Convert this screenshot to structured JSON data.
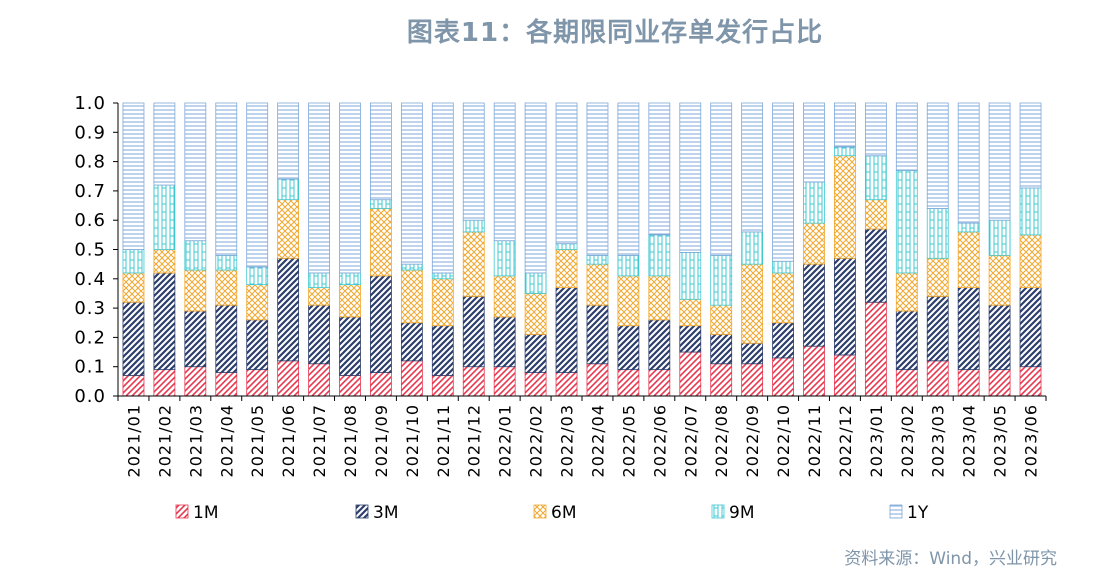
{
  "title": "图表11：各期限同业存单发行占比",
  "source": "资料来源：Wind，兴业研究",
  "chart_data": {
    "type": "bar",
    "stacked": true,
    "ylim": [
      0,
      1
    ],
    "yticks": [
      "0.0",
      "0.1",
      "0.2",
      "0.3",
      "0.4",
      "0.5",
      "0.6",
      "0.7",
      "0.8",
      "0.9",
      "1.0"
    ],
    "legend_position": "bottom",
    "grid": false,
    "categories": [
      "2021/01",
      "2021/02",
      "2021/03",
      "2021/04",
      "2021/05",
      "2021/06",
      "2021/07",
      "2021/08",
      "2021/09",
      "2021/10",
      "2021/11",
      "2021/12",
      "2022/01",
      "2022/02",
      "2022/03",
      "2022/04",
      "2022/05",
      "2022/06",
      "2022/07",
      "2022/08",
      "2022/09",
      "2022/10",
      "2022/11",
      "2022/12",
      "2023/01",
      "2023/02",
      "2023/03",
      "2023/04",
      "2023/05",
      "2023/06"
    ],
    "series": [
      {
        "name": "1M",
        "color": "#e8384f",
        "pattern": "diag-right",
        "values": [
          0.07,
          0.09,
          0.1,
          0.08,
          0.09,
          0.12,
          0.11,
          0.07,
          0.08,
          0.12,
          0.07,
          0.1,
          0.1,
          0.08,
          0.08,
          0.11,
          0.09,
          0.09,
          0.15,
          0.11,
          0.11,
          0.13,
          0.17,
          0.14,
          0.32,
          0.09,
          0.12,
          0.09,
          0.09,
          0.1
        ]
      },
      {
        "name": "3M",
        "color": "#2c3e6b",
        "pattern": "diag-thick",
        "values": [
          0.25,
          0.33,
          0.19,
          0.23,
          0.17,
          0.35,
          0.2,
          0.2,
          0.33,
          0.13,
          0.17,
          0.24,
          0.17,
          0.13,
          0.29,
          0.2,
          0.15,
          0.17,
          0.09,
          0.1,
          0.07,
          0.12,
          0.28,
          0.33,
          0.25,
          0.2,
          0.22,
          0.28,
          0.22,
          0.27
        ]
      },
      {
        "name": "6M",
        "color": "#f0a830",
        "pattern": "crosshatch",
        "values": [
          0.1,
          0.08,
          0.14,
          0.12,
          0.12,
          0.2,
          0.06,
          0.11,
          0.23,
          0.18,
          0.16,
          0.22,
          0.14,
          0.14,
          0.13,
          0.14,
          0.17,
          0.15,
          0.09,
          0.1,
          0.27,
          0.17,
          0.14,
          0.35,
          0.1,
          0.13,
          0.13,
          0.19,
          0.17,
          0.18
        ]
      },
      {
        "name": "9M",
        "color": "#3fc8d2",
        "pattern": "ladder",
        "values": [
          0.08,
          0.22,
          0.1,
          0.05,
          0.06,
          0.07,
          0.05,
          0.04,
          0.03,
          0.02,
          0.02,
          0.04,
          0.12,
          0.07,
          0.02,
          0.03,
          0.07,
          0.14,
          0.16,
          0.17,
          0.11,
          0.04,
          0.14,
          0.03,
          0.15,
          0.35,
          0.17,
          0.03,
          0.12,
          0.16
        ]
      },
      {
        "name": "1Y",
        "color": "#7fa8d8",
        "pattern": "hlines",
        "values": [
          0.5,
          0.28,
          0.47,
          0.52,
          0.56,
          0.26,
          0.58,
          0.58,
          0.33,
          0.55,
          0.58,
          0.4,
          0.47,
          0.58,
          0.48,
          0.52,
          0.52,
          0.45,
          0.51,
          0.52,
          0.44,
          0.54,
          0.27,
          0.15,
          0.18,
          0.23,
          0.36,
          0.41,
          0.4,
          0.29
        ]
      }
    ]
  }
}
